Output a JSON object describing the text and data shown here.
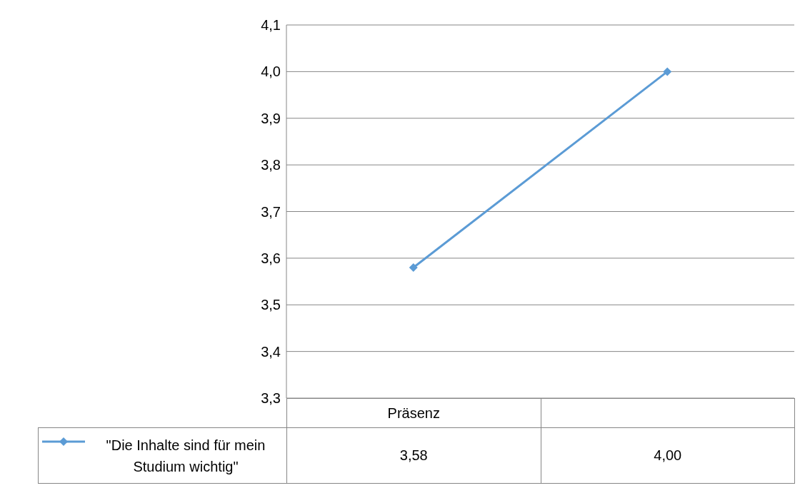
{
  "chart_data": {
    "type": "line",
    "categories": [
      "Präsenz",
      null
    ],
    "series": [
      {
        "name": "\"Die Inhalte sind für mein Studium wichtig\"",
        "color": "#5b9bd5",
        "values": [
          3.58,
          4.0
        ],
        "value_labels": [
          "3,58",
          "4,00"
        ]
      }
    ],
    "ylim": [
      3.3,
      4.1
    ],
    "yticks": [
      {
        "value": 3.3,
        "label": "3,3"
      },
      {
        "value": 3.4,
        "label": "3,4"
      },
      {
        "value": 3.5,
        "label": "3,5"
      },
      {
        "value": 3.6,
        "label": "3,6"
      },
      {
        "value": 3.7,
        "label": "3,7"
      },
      {
        "value": 3.8,
        "label": "3,8"
      },
      {
        "value": 3.9,
        "label": "3,9"
      },
      {
        "value": 4.0,
        "label": "4,0"
      },
      {
        "value": 4.1,
        "label": "4,1"
      }
    ],
    "grid": "y",
    "legend": "bottom left",
    "marker": "diamond",
    "line_style": "solid"
  }
}
